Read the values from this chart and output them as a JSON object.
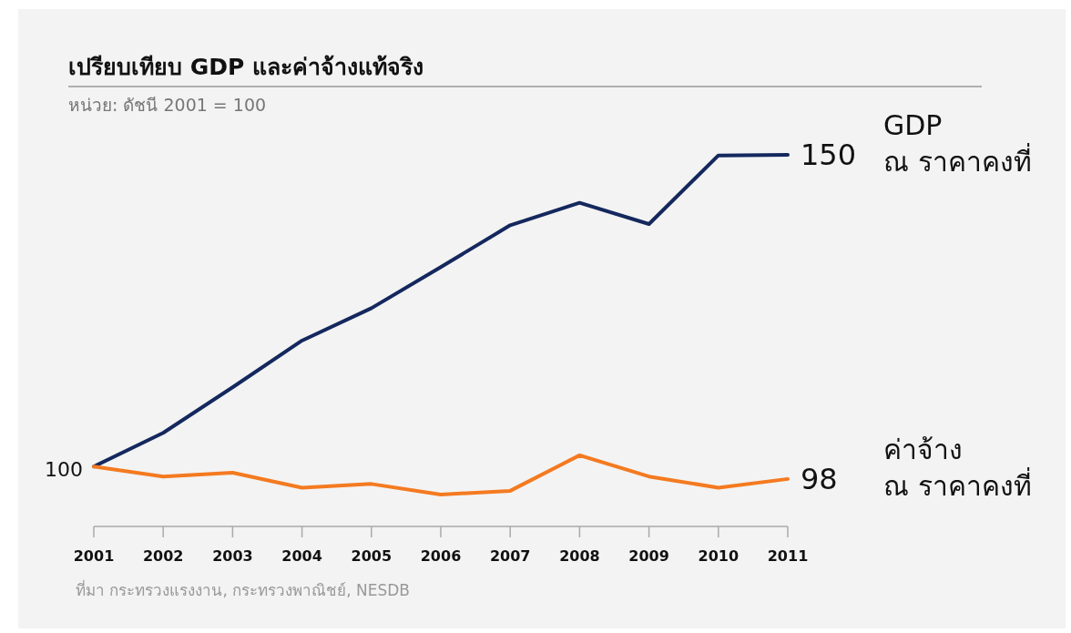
{
  "chart_data": {
    "type": "line",
    "title": "เปรียบเทียบ GDP และค่าจ้างแท้จริง",
    "subtitle": "หน่วย: ดัชนี 2001 = 100",
    "annotations": [
      "ที่มา กระทรวงแรงงาน, กระทรวงพาณิชย์, NESDB"
    ],
    "x": [
      2001,
      2002,
      2003,
      2004,
      2005,
      2006,
      2007,
      2008,
      2009,
      2010,
      2011
    ],
    "xlim": [
      2001,
      2011
    ],
    "xticks": [
      2001,
      2002,
      2003,
      2004,
      2005,
      2006,
      2007,
      2008,
      2009,
      2010,
      2011
    ],
    "tick_labels": "x",
    "grid": false,
    "marker": "none",
    "line_style": "solid",
    "series": [
      {
        "name": "GDP\nณ ราคาคงที่",
        "color": "#14285e",
        "values": [
          100,
          105.4,
          112.7,
          120.2,
          125.4,
          132.0,
          138.7,
          142.3,
          138.9,
          149.9,
          150
        ],
        "value_labels": [
          "100",
          null,
          null,
          null,
          null,
          null,
          null,
          null,
          null,
          null,
          "150"
        ]
      },
      {
        "name": "ค่าจ้าง\nณ ราคาคงที่",
        "color": "#f47a20",
        "values": [
          100,
          98.4,
          99.0,
          96.6,
          97.2,
          95.5,
          96.1,
          101.8,
          98.4,
          96.6,
          98
        ],
        "value_labels": [
          null,
          null,
          null,
          null,
          null,
          null,
          null,
          null,
          null,
          null,
          "98"
        ]
      }
    ]
  }
}
